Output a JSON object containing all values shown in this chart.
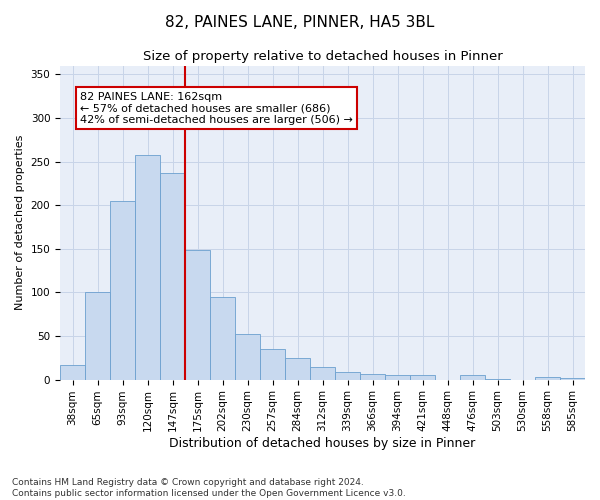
{
  "title1": "82, PAINES LANE, PINNER, HA5 3BL",
  "title2": "Size of property relative to detached houses in Pinner",
  "xlabel": "Distribution of detached houses by size in Pinner",
  "ylabel": "Number of detached properties",
  "categories": [
    "38sqm",
    "65sqm",
    "93sqm",
    "120sqm",
    "147sqm",
    "175sqm",
    "202sqm",
    "230sqm",
    "257sqm",
    "284sqm",
    "312sqm",
    "339sqm",
    "366sqm",
    "394sqm",
    "421sqm",
    "448sqm",
    "476sqm",
    "503sqm",
    "530sqm",
    "558sqm",
    "585sqm"
  ],
  "values": [
    17,
    100,
    205,
    257,
    237,
    149,
    95,
    52,
    35,
    25,
    14,
    9,
    6,
    5,
    5,
    0,
    5,
    1,
    0,
    3,
    2
  ],
  "bar_color": "#c8d9ef",
  "bar_edge_color": "#6b9fcf",
  "vline_x": 4.5,
  "vline_color": "#cc0000",
  "annotation_text": "82 PAINES LANE: 162sqm\n← 57% of detached houses are smaller (686)\n42% of semi-detached houses are larger (506) →",
  "annotation_box_color": "#ffffff",
  "annotation_box_edge": "#cc0000",
  "ylim": [
    0,
    360
  ],
  "yticks": [
    0,
    50,
    100,
    150,
    200,
    250,
    300,
    350
  ],
  "grid_color": "#c8d4e8",
  "background_color": "#e8eef8",
  "footer_text": "Contains HM Land Registry data © Crown copyright and database right 2024.\nContains public sector information licensed under the Open Government Licence v3.0.",
  "title1_fontsize": 11,
  "title2_fontsize": 9.5,
  "xlabel_fontsize": 9,
  "ylabel_fontsize": 8,
  "tick_fontsize": 7.5,
  "annotation_fontsize": 8,
  "footer_fontsize": 6.5
}
